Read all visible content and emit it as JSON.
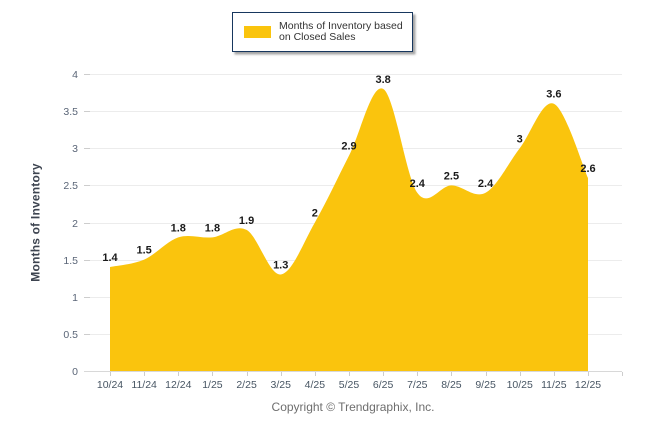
{
  "chart_data": {
    "type": "area",
    "smooth": true,
    "categories": [
      "10/24",
      "11/24",
      "12/24",
      "1/25",
      "2/25",
      "3/25",
      "4/25",
      "5/25",
      "6/25",
      "7/25",
      "8/25",
      "9/25",
      "10/25",
      "11/25",
      "12/25"
    ],
    "series": [
      {
        "name": "Months of Inventory based on Closed Sales",
        "values": [
          1.4,
          1.5,
          1.8,
          1.8,
          1.9,
          1.3,
          2,
          2.9,
          3.8,
          2.4,
          2.5,
          2.4,
          3,
          3.6,
          2.6
        ]
      }
    ],
    "point_labels": [
      "1.4",
      "1.5",
      "1.8",
      "1.8",
      "1.9",
      "1.3",
      "2",
      "2.9",
      "3.8",
      "2.4",
      "2.5",
      "2.4",
      "3",
      "3.6",
      "2.6"
    ],
    "title": "",
    "xlabel": "",
    "ylabel": "Months of Inventory",
    "ylim": [
      0,
      4
    ],
    "yticks": [
      0,
      0.5,
      1,
      1.5,
      2,
      2.5,
      3,
      3.5,
      4
    ],
    "ytick_labels": [
      "0",
      "0.5",
      "1",
      "1.5",
      "2",
      "2.5",
      "3",
      "3.5",
      "4"
    ],
    "grid": true,
    "legend": {
      "label": "Months of Inventory based on Closed Sales",
      "position": "top-center"
    },
    "colors": {
      "area": "#FAC40D",
      "grid": "#ECECEC",
      "axis_line": "#D8D8D8",
      "tick": "#CDCDCD",
      "x_tick_label": "#475563",
      "y_tick_label": "#5A6577",
      "point_label": "#1A1A1A",
      "legend_border": "#17375E",
      "legend_text": "#333333",
      "axis_title": "#3D4450",
      "copyright_text": "#6E6E6E"
    }
  },
  "footer": {
    "copyright": "Copyright © Trendgraphix, Inc."
  }
}
